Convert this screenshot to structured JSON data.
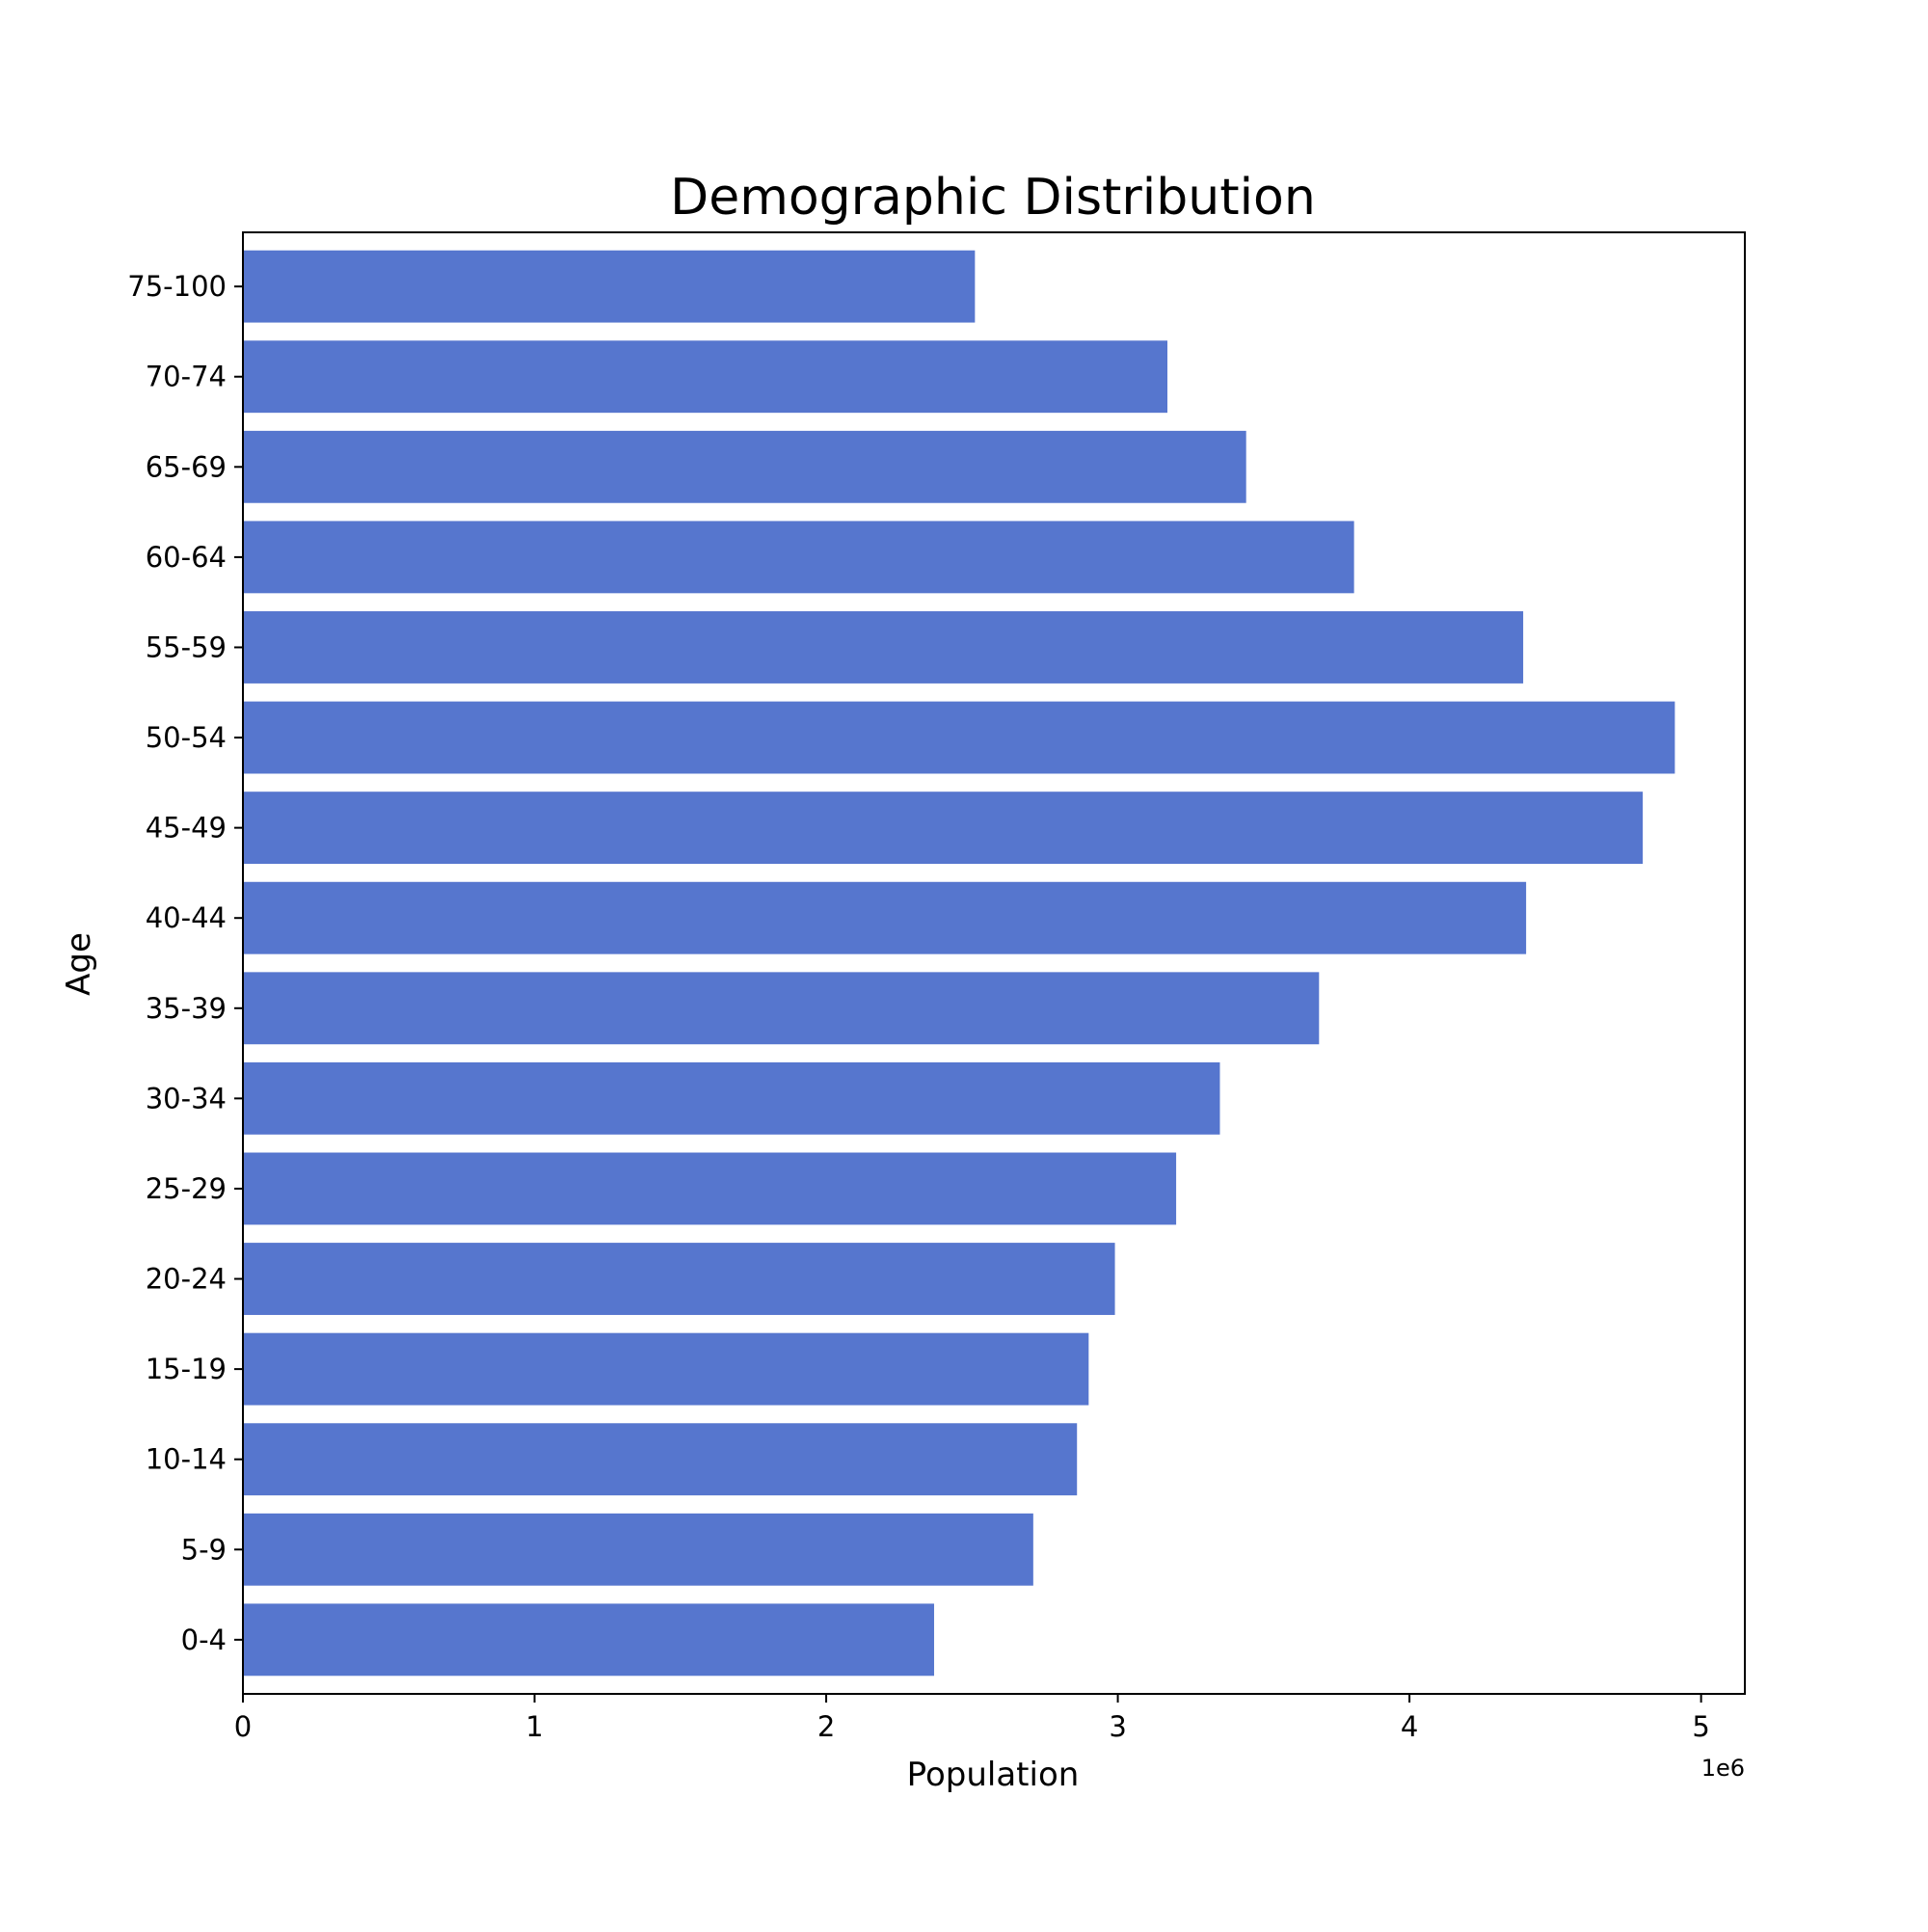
{
  "chart_data": {
    "type": "bar",
    "orientation": "horizontal",
    "title": "Demographic Distribution",
    "xlabel": "Population",
    "ylabel": "Age",
    "x_offset_label": "1e6",
    "xlim": [
      0,
      5150000
    ],
    "x_ticks": [
      0,
      1000000,
      2000000,
      3000000,
      4000000,
      5000000
    ],
    "x_tick_labels": [
      "0",
      "1",
      "2",
      "3",
      "4",
      "5"
    ],
    "categories": [
      "0-4",
      "5-9",
      "10-14",
      "15-19",
      "20-24",
      "25-29",
      "30-34",
      "35-39",
      "40-44",
      "45-49",
      "50-54",
      "55-59",
      "60-64",
      "65-69",
      "70-74",
      "75-100"
    ],
    "values": [
      2370000,
      2710000,
      2860000,
      2900000,
      2990000,
      3200000,
      3350000,
      3690000,
      4400000,
      4800000,
      4910000,
      4390000,
      3810000,
      3440000,
      3170000,
      2510000
    ],
    "bar_color": "#5676ce",
    "grid": false,
    "legend": "none"
  }
}
